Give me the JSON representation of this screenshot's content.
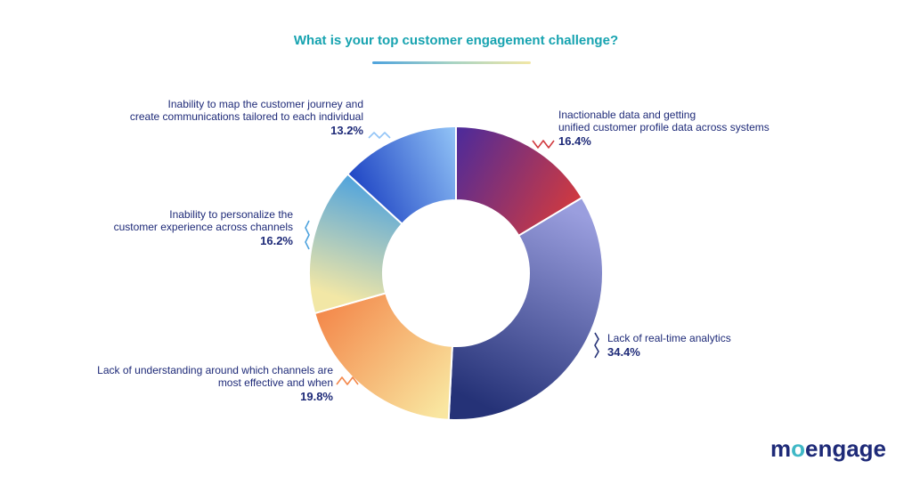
{
  "chart_data": {
    "type": "pie",
    "title": "What is your top customer engagement challenge?",
    "unit": "%",
    "slices": [
      {
        "lines": [
          "Inactionable data and getting",
          "unified customer profile data across systems"
        ],
        "value": 16.4,
        "display": "16.4%",
        "colors": [
          "#4a2a9c",
          "#d13a3f"
        ]
      },
      {
        "lines": [
          "Lack of real-time analytics"
        ],
        "value": 34.4,
        "display": "34.4%",
        "colors": [
          "#9a9ede",
          "#253277"
        ]
      },
      {
        "lines": [
          "Lack of understanding around which channels are",
          "most effective and when"
        ],
        "value": 19.8,
        "display": "19.8%",
        "colors": [
          "#f9e6a0",
          "#f3874a"
        ]
      },
      {
        "lines": [
          "Inability to personalize the",
          "customer experience across channels"
        ],
        "value": 16.2,
        "display": "16.2%",
        "colors": [
          "#f2e7a6",
          "#4fa3dd"
        ]
      },
      {
        "lines": [
          "Inability to map the customer journey and",
          "create communications tailored to each individual"
        ],
        "value": 13.2,
        "display": "13.2%",
        "colors": [
          "#1f45c4",
          "#93c5f7"
        ]
      }
    ]
  },
  "colors": {
    "title": "#17a3b0",
    "label_text": "#1e2a78",
    "logo_text": "#1e2a78",
    "logo_o": "#3fb8c6"
  },
  "logo": {
    "before": "m",
    "o": "o",
    "after": "engage"
  }
}
